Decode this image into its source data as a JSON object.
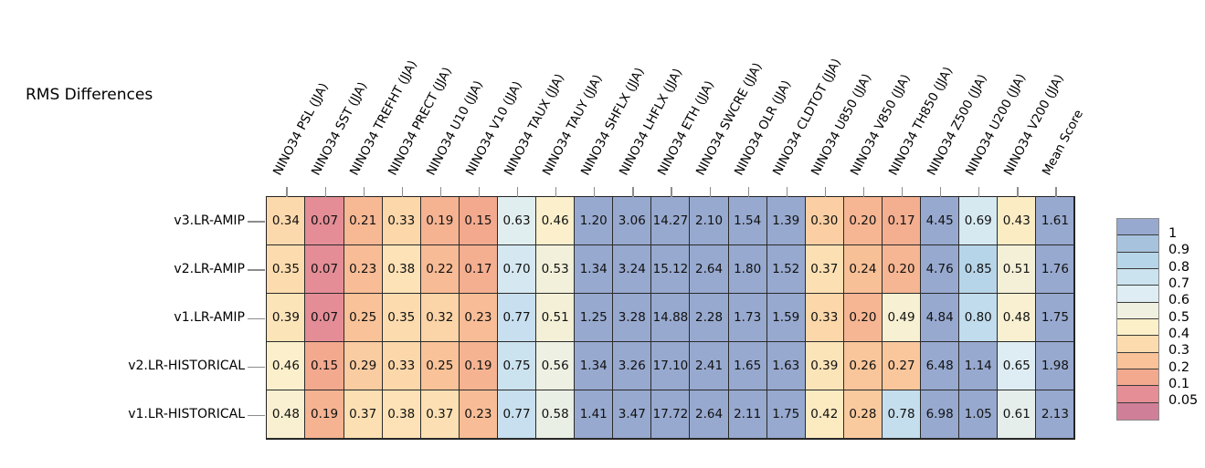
{
  "title": "RMS Differences",
  "chart_data": {
    "type": "heatmap",
    "title": "RMS Differences",
    "columns": [
      "NINO34 PSL (JJA)",
      "NINO34 SST (JJA)",
      "NINO34 TREFHT (JJA)",
      "NINO34 PRECT (JJA)",
      "NINO34 U10 (JJA)",
      "NINO34 V10 (JJA)",
      "NINO34 TAUX (JJA)",
      "NINO34 TAUY (JJA)",
      "NINO34 SHFLX (JJA)",
      "NINO34 LHFLX (JJA)",
      "NINO34 ETH (JJA)",
      "NINO34 SWCRE (JJA)",
      "NINO34 OLR (JJA)",
      "NINO34 CLDTOT (JJA)",
      "NINO34 U850 (JJA)",
      "NINO34 V850 (JJA)",
      "NINO34 TH850 (JJA)",
      "NINO34 Z500 (JJA)",
      "NINO34 U200 (JJA)",
      "NINO34 V200 (JJA)",
      "Mean Score"
    ],
    "rows": [
      "v3.LR-AMIP",
      "v2.LR-AMIP",
      "v1.LR-AMIP",
      "v2.LR-HISTORICAL",
      "v1.LR-HISTORICAL"
    ],
    "values": [
      [
        0.34,
        0.07,
        0.21,
        0.33,
        0.19,
        0.15,
        0.63,
        0.46,
        1.2,
        3.06,
        14.27,
        2.1,
        1.54,
        1.39,
        0.3,
        0.2,
        0.17,
        4.45,
        0.69,
        0.43,
        1.61
      ],
      [
        0.35,
        0.07,
        0.23,
        0.38,
        0.22,
        0.17,
        0.7,
        0.53,
        1.34,
        3.24,
        15.12,
        2.64,
        1.8,
        1.52,
        0.37,
        0.24,
        0.2,
        4.76,
        0.85,
        0.51,
        1.76
      ],
      [
        0.39,
        0.07,
        0.25,
        0.35,
        0.32,
        0.23,
        0.77,
        0.51,
        1.25,
        3.28,
        14.88,
        2.28,
        1.73,
        1.59,
        0.33,
        0.2,
        0.49,
        4.84,
        0.8,
        0.48,
        1.75
      ],
      [
        0.46,
        0.15,
        0.29,
        0.33,
        0.25,
        0.19,
        0.75,
        0.56,
        1.34,
        3.26,
        17.1,
        2.41,
        1.65,
        1.63,
        0.39,
        0.26,
        0.27,
        6.48,
        1.14,
        0.65,
        1.98
      ],
      [
        0.48,
        0.19,
        0.37,
        0.38,
        0.37,
        0.23,
        0.77,
        0.58,
        1.41,
        3.47,
        17.72,
        2.64,
        2.11,
        1.75,
        0.42,
        0.28,
        0.78,
        6.98,
        1.05,
        0.61,
        2.13
      ]
    ],
    "colorbar": {
      "tick_labels": [
        "1",
        "0.9",
        "0.8",
        "0.7",
        "0.6",
        "0.5",
        "0.4",
        "0.3",
        "0.2",
        "0.1",
        "0.05"
      ],
      "tick_values": [
        1,
        0.9,
        0.8,
        0.7,
        0.6,
        0.5,
        0.4,
        0.3,
        0.2,
        0.1,
        0.05
      ],
      "segment_colors_top_to_bottom": [
        "#97A9CF",
        "#A7C2DD",
        "#B7D5E8",
        "#CBE2EF",
        "#DEEDF3",
        "#EFF0E0",
        "#FCF0C9",
        "#FCDCAE",
        "#F9C298",
        "#F3A98E",
        "#E68E96",
        "#D07F98"
      ]
    },
    "layout_hints": {
      "legend_position": "right",
      "value_decimals": 2
    }
  }
}
